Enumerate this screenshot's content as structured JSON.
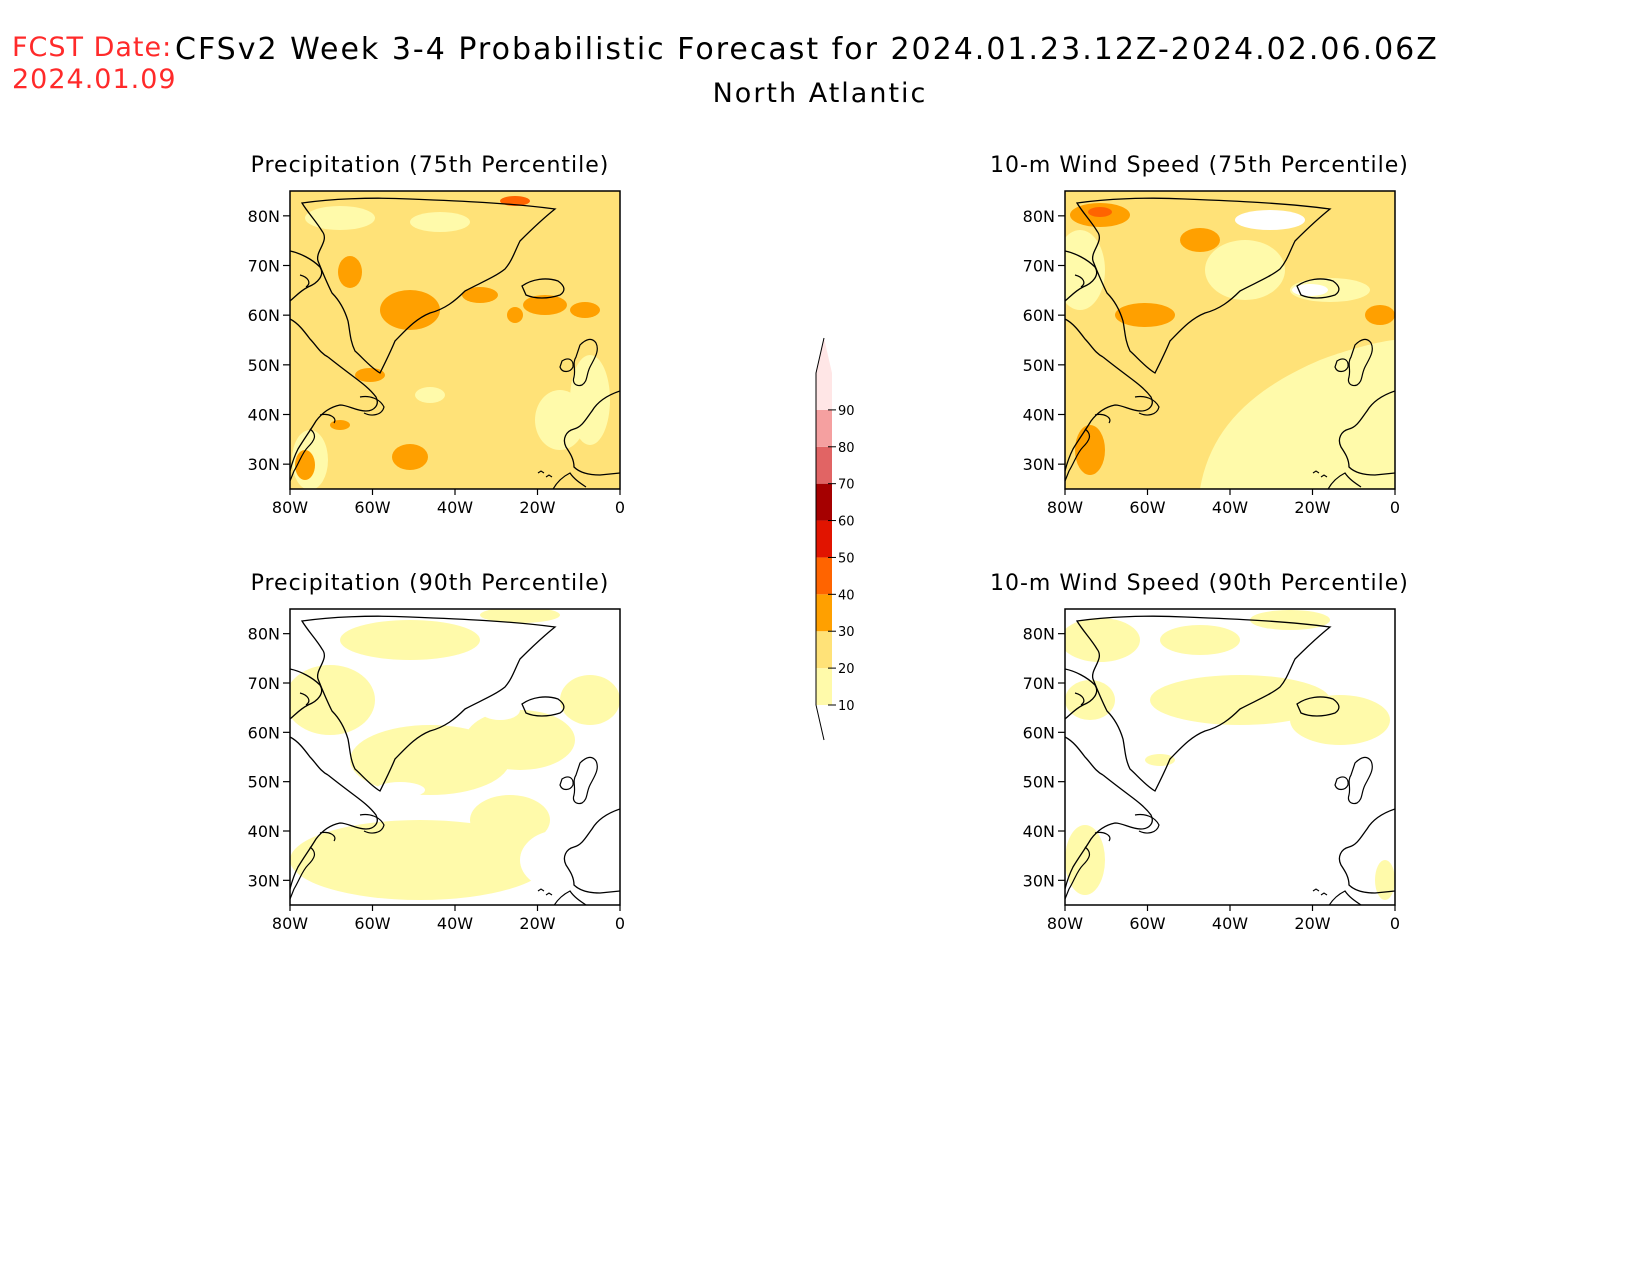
{
  "header": {
    "fcst_label": "FCST Date:",
    "fcst_date": "2024.01.09",
    "title": "CFSv2 Week 3-4 Probabilistic Forecast for 2024.01.23.12Z-2024.02.06.06Z",
    "subtitle": "North Atlantic"
  },
  "panels": [
    {
      "title": "Precipitation (75th Percentile)"
    },
    {
      "title": "10-m Wind Speed (75th Percentile)"
    },
    {
      "title": "Precipitation (90th Percentile)"
    },
    {
      "title": "10-m Wind Speed (90th Percentile)"
    }
  ],
  "axes": {
    "lat_labels": [
      "80N",
      "70N",
      "60N",
      "50N",
      "40N",
      "30N"
    ],
    "lat_values": [
      80,
      70,
      60,
      50,
      40,
      30
    ],
    "lon_labels": [
      "80W",
      "60W",
      "40W",
      "20W",
      "0"
    ],
    "lon_values": [
      -80,
      -60,
      -40,
      -20,
      0
    ],
    "lat_range": [
      25,
      85
    ],
    "lon_range": [
      -80,
      0
    ]
  },
  "colorbar": {
    "levels": [
      "10",
      "20",
      "30",
      "40",
      "50",
      "60",
      "70",
      "80",
      "90"
    ],
    "colors": [
      "#fffaaa",
      "#ffe278",
      "#ffa000",
      "#ff6400",
      "#e11400",
      "#a50000",
      "#e16464",
      "#f5a0a0",
      "#ffe6e6"
    ]
  }
}
